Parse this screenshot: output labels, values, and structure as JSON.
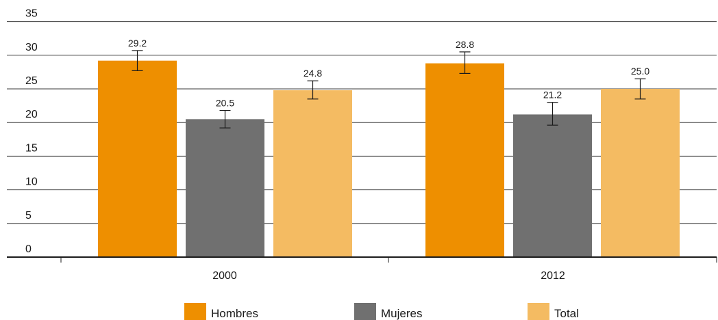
{
  "chart_data": {
    "type": "bar",
    "categories": [
      "2000",
      "2012"
    ],
    "series": [
      {
        "name": "Hombres",
        "values": [
          29.2,
          28.8
        ],
        "error_low": [
          27.7,
          27.3
        ],
        "error_high": [
          30.7,
          30.5
        ],
        "color": "#EE8F00"
      },
      {
        "name": "Mujeres",
        "values": [
          20.5,
          21.2
        ],
        "error_low": [
          19.2,
          19.6
        ],
        "error_high": [
          21.8,
          23.0
        ],
        "color": "#707070"
      },
      {
        "name": "Total",
        "values": [
          24.8,
          25.0
        ],
        "error_low": [
          23.5,
          23.5
        ],
        "error_high": [
          26.2,
          26.5
        ],
        "color": "#F4BB62"
      }
    ],
    "data_labels": [
      [
        "29.2",
        "28.8"
      ],
      [
        "20.5",
        "21.2"
      ],
      [
        "24.8",
        "25.0"
      ]
    ],
    "yticks": [
      "0",
      "5",
      "10",
      "15",
      "20",
      "25",
      "30",
      "35"
    ],
    "ylim": [
      0,
      35
    ],
    "grid": true,
    "legend_position": "bottom",
    "title": "",
    "xlabel": "",
    "ylabel": ""
  }
}
